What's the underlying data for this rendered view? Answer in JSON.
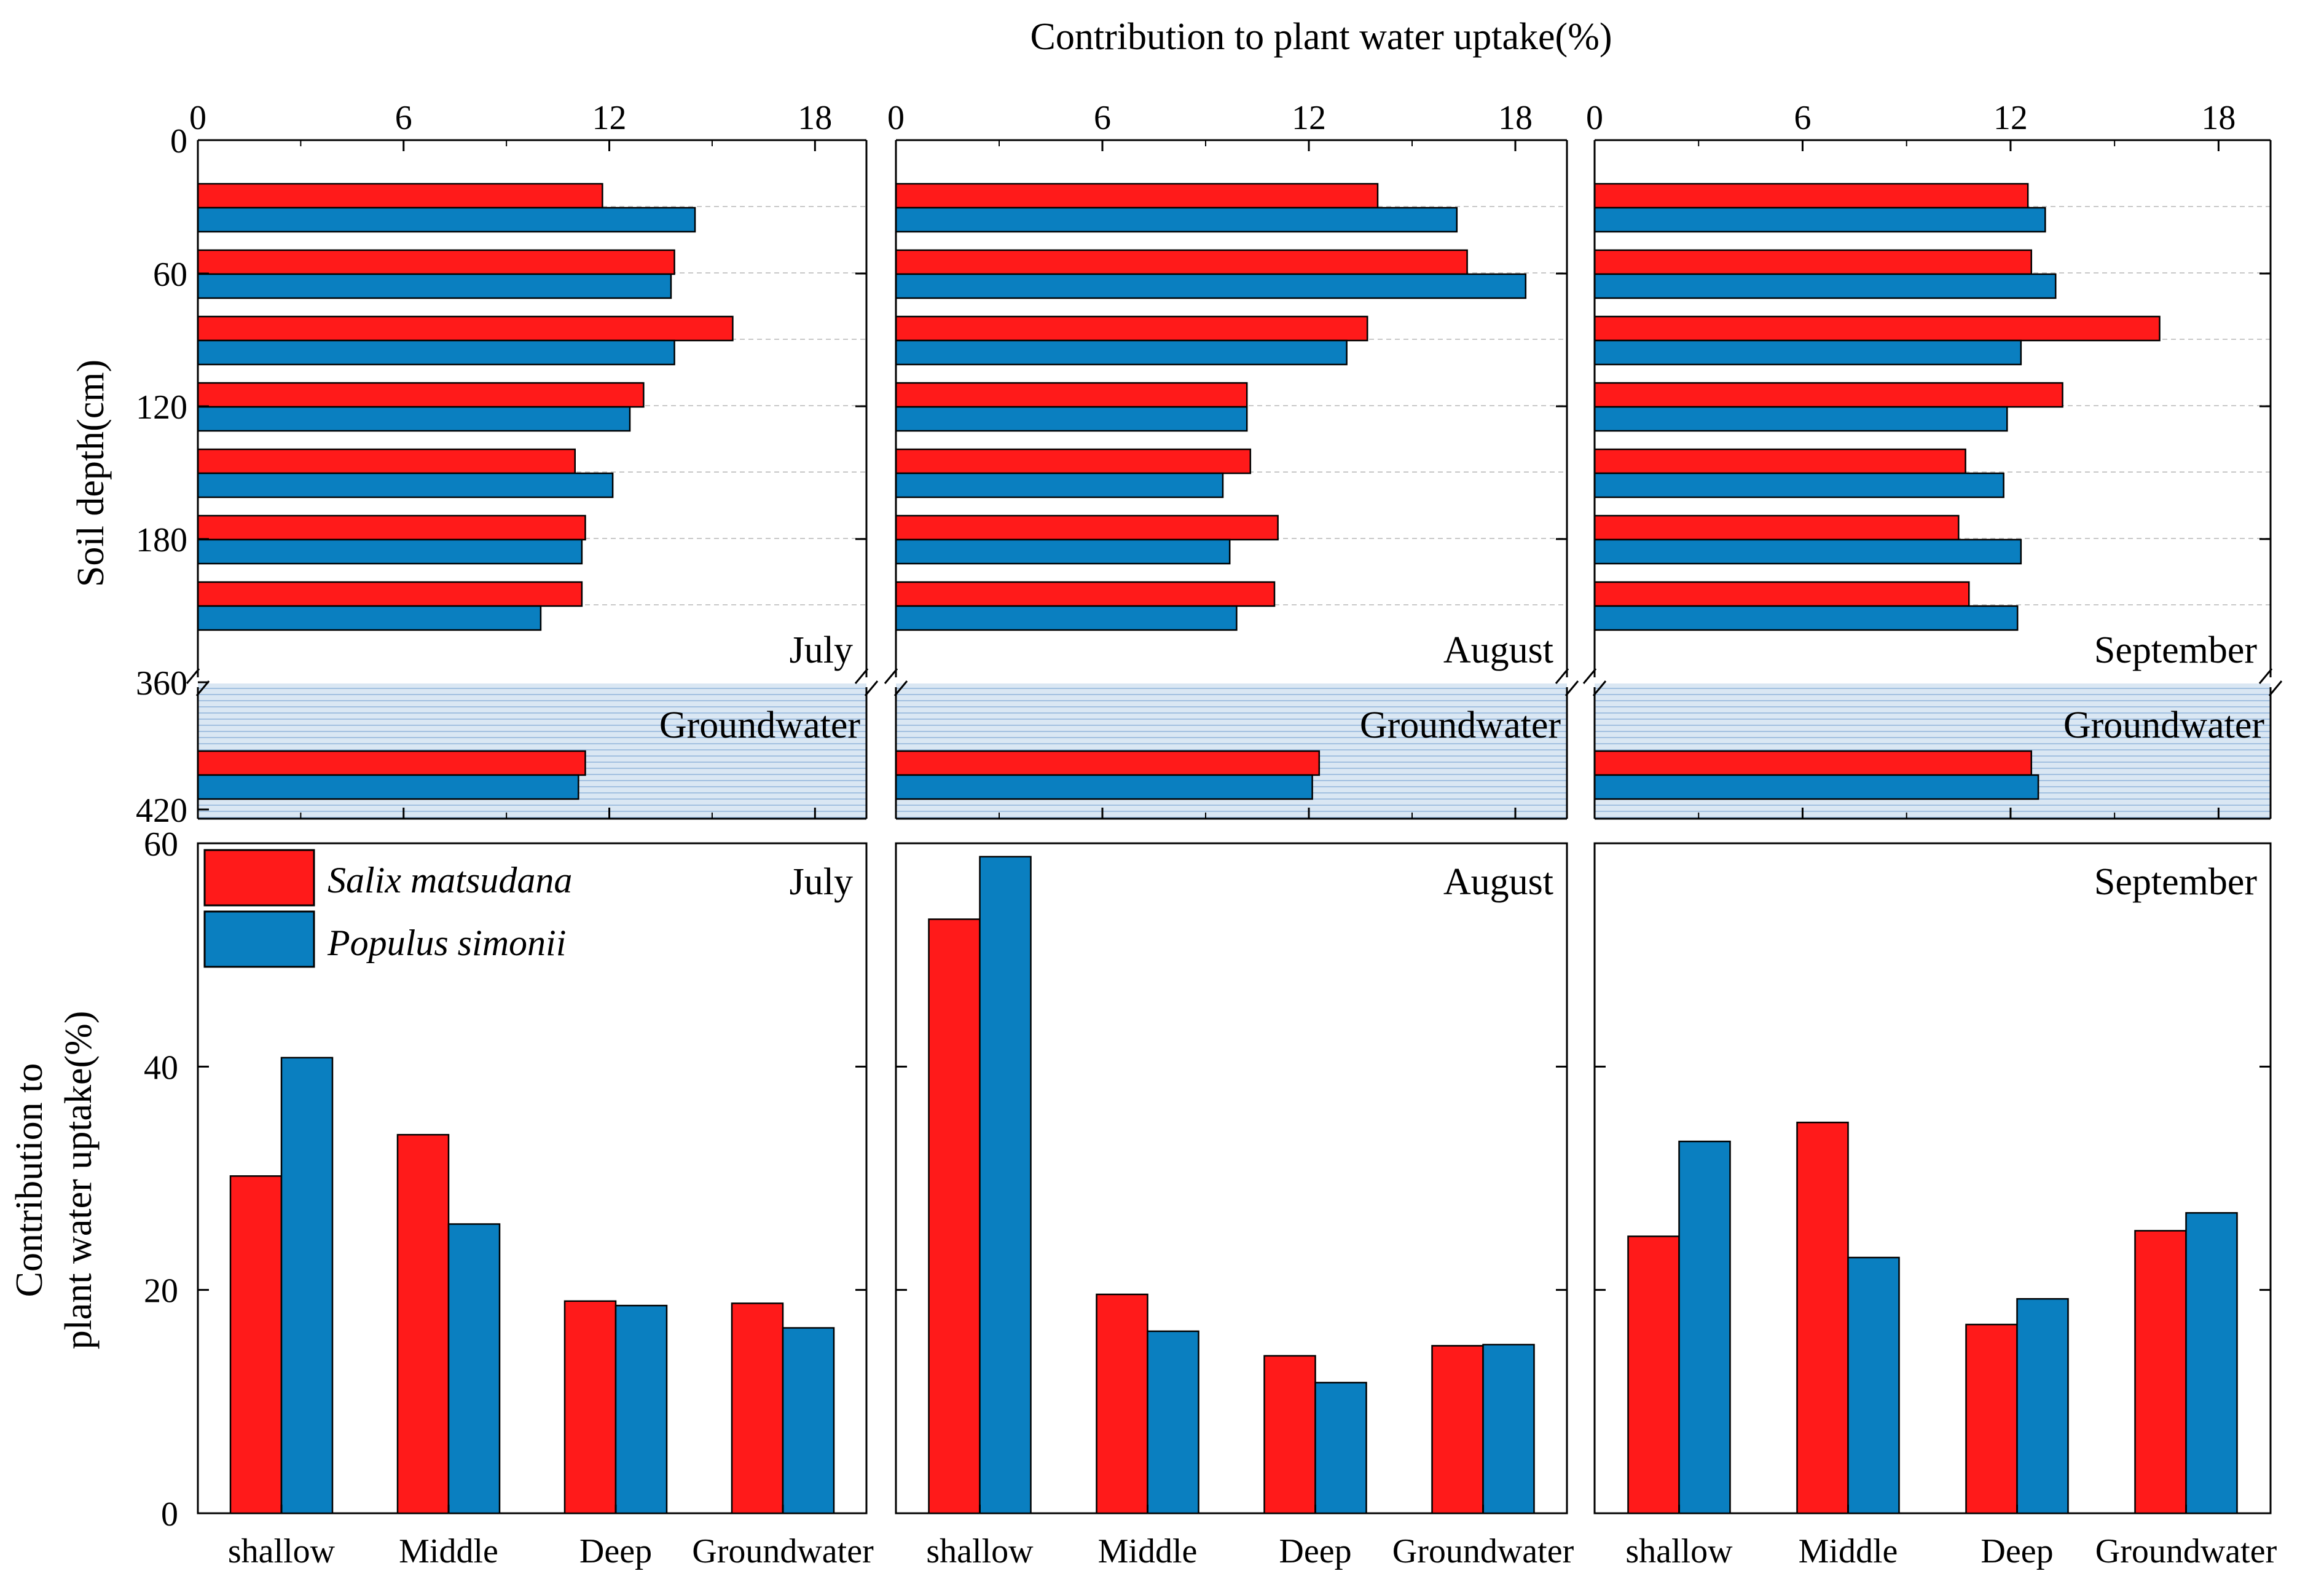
{
  "chart_data": {
    "type": "bar",
    "title": "",
    "top_axis_title": "Contribution to plant water uptake(%)",
    "top_ylabel": "Soil depth(cm)",
    "bottom_ylabel_line1": "Contribution to",
    "bottom_ylabel_line2": "plant water uptake(%)",
    "series_names": [
      "Salix matsudana",
      "Populus simonii"
    ],
    "colors": {
      "salix": "#ff1a1a",
      "populus": "#0a7fc0",
      "groundwater_band": "#bcd3ea",
      "gridline": "#c8c8c8"
    },
    "groundwater_label": "Groundwater",
    "top": {
      "type": "bar-horizontal",
      "xlim": [
        0,
        19.5
      ],
      "xticks": [
        "0",
        "6",
        "12",
        "18"
      ],
      "xtick_values": [
        0,
        6,
        12,
        18
      ],
      "depth_ticks": [
        "0",
        "60",
        "120",
        "180",
        "360",
        "420"
      ],
      "panels": [
        {
          "month": "July",
          "salix": [
            11.8,
            13.9,
            15.6,
            13.0,
            11.0,
            11.3,
            11.2
          ],
          "populus": [
            14.5,
            13.8,
            13.9,
            12.6,
            12.1,
            11.2,
            10.0
          ],
          "gw_salix": 11.3,
          "gw_populus": 11.1
        },
        {
          "month": "August",
          "salix": [
            14.0,
            16.6,
            13.7,
            10.2,
            10.3,
            11.1,
            11.0
          ],
          "populus": [
            16.3,
            18.3,
            13.1,
            10.2,
            9.5,
            9.7,
            9.9
          ],
          "gw_salix": 12.3,
          "gw_populus": 12.1
        },
        {
          "month": "September",
          "salix": [
            12.5,
            12.6,
            16.3,
            13.5,
            10.7,
            10.5,
            10.8
          ],
          "populus": [
            13.0,
            13.3,
            12.3,
            11.9,
            11.8,
            12.3,
            12.2
          ],
          "gw_salix": 12.6,
          "gw_populus": 12.8
        }
      ]
    },
    "bottom": {
      "type": "bar",
      "categories": [
        "shallow",
        "Middle",
        "Deep",
        "Groundwater"
      ],
      "ylim": [
        0,
        60
      ],
      "yticks": [
        "0",
        "20",
        "40",
        "60"
      ],
      "ytick_values": [
        0,
        20,
        40,
        60
      ],
      "panels": [
        {
          "month": "July",
          "salix": [
            30.2,
            33.9,
            19.0,
            18.8
          ],
          "populus": [
            40.8,
            25.9,
            18.6,
            16.6
          ]
        },
        {
          "month": "August",
          "salix": [
            53.2,
            19.6,
            14.1,
            15.0
          ],
          "populus": [
            58.8,
            16.3,
            11.7,
            15.1
          ]
        },
        {
          "month": "September",
          "salix": [
            24.8,
            35.0,
            16.9,
            25.3
          ],
          "populus": [
            33.3,
            22.9,
            19.2,
            26.9
          ]
        }
      ]
    }
  }
}
